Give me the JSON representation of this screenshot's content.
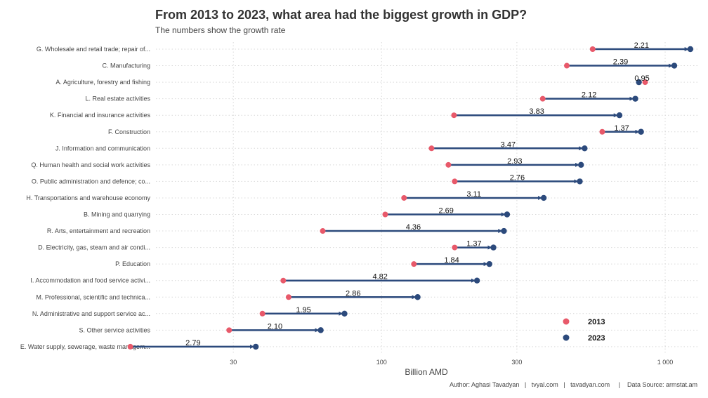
{
  "chart_data": {
    "type": "dumbbell",
    "title": "From 2013 to 2023, what area had the biggest growth in GDP?",
    "subtitle": "The numbers show the growth rate",
    "xlabel": "Billion AMD",
    "x_scale": "log",
    "xlim": [
      16,
      1300
    ],
    "x_ticks": [
      30,
      100,
      300,
      1000
    ],
    "x_tick_labels": [
      "30",
      "100",
      "300",
      "1 000"
    ],
    "grid": true,
    "legend_position": "bottom-right",
    "series": [
      {
        "name": "2013",
        "color": "#e8596a"
      },
      {
        "name": "2023",
        "color": "#2c4a7c"
      }
    ],
    "categories": [
      "G. Wholesale and retail trade; repair of...",
      "C. Manufacturing",
      "A. Agriculture, forestry and fishing",
      "L. Real estate activities",
      "K. Financial and insurance activities",
      "F. Construction",
      "J. Information and communication",
      "Q. Human health and social work activities",
      "O. Public administration and defence; co...",
      "H. Transportations and warehouse economy",
      "B. Mining and quarrying",
      "R. Arts, entertainment and recreation",
      "D. Electricity, gas, steam and air condi...",
      "P. Education",
      "I. Accommodation and food service activi...",
      "M. Professional, scientific and technica...",
      "N. Administrative and support service ac...",
      "S. Other service activities",
      "E. Water supply, sewerage, waste managem..."
    ],
    "values_2013": [
      555,
      450,
      850,
      370,
      180,
      600,
      150,
      172,
      181,
      120,
      103,
      62,
      181,
      130,
      45,
      47,
      38,
      29,
      13
    ],
    "values_2023": [
      1227,
      1077,
      808,
      785,
      690,
      822,
      520,
      505,
      500,
      373,
      277,
      270,
      248,
      240,
      217,
      134,
      74,
      61,
      36
    ],
    "growth_labels": [
      "2.21",
      "2.39",
      "0.95",
      "2.12",
      "3.83",
      "1.37",
      "3.47",
      "2.93",
      "2.76",
      "3.11",
      "2.69",
      "4.36",
      "1.37",
      "1.84",
      "4.82",
      "2.86",
      "1.95",
      "2.10",
      "2.79"
    ]
  },
  "caption": "Author: Aghasi Tavadyan   |   tvyal.com   |   tavadyan.com     |    Data Source: armstat.am"
}
